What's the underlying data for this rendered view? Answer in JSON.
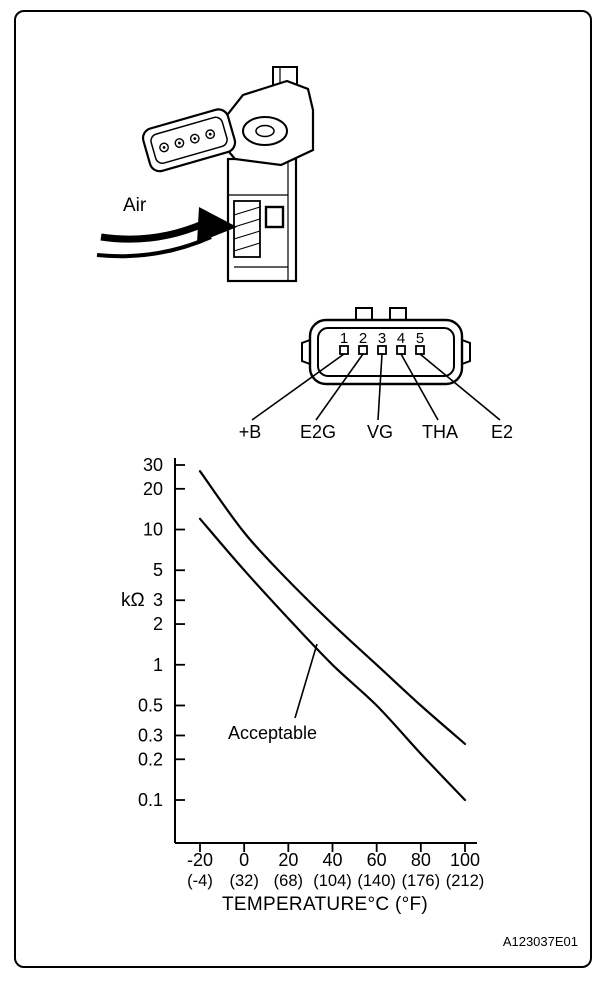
{
  "sensor": {
    "air_label": "Air"
  },
  "connector": {
    "pins": [
      {
        "number": "1",
        "label": "+B"
      },
      {
        "number": "2",
        "label": "E2G"
      },
      {
        "number": "3",
        "label": "VG"
      },
      {
        "number": "4",
        "label": "THA"
      },
      {
        "number": "5",
        "label": "E2"
      }
    ]
  },
  "chart_data": {
    "type": "line",
    "title": "",
    "xlabel": "TEMPERATURE°C (°F)",
    "ylabel": "kΩ",
    "y_scale": "log",
    "xlim": [
      -20,
      100
    ],
    "ylim": [
      0.1,
      30
    ],
    "grid": false,
    "legend": "none",
    "x_ticks_c": [
      "-20",
      "0",
      "20",
      "40",
      "60",
      "80",
      "100"
    ],
    "x_ticks_f": [
      "(-4)",
      "(32)",
      "(68)",
      "(104)",
      "(140)",
      "(176)",
      "(212)"
    ],
    "y_ticks": [
      "30",
      "20",
      "10",
      "5",
      "3",
      "2",
      "1",
      "0.5",
      "0.3",
      "0.2",
      "0.1"
    ],
    "annotation": "Acceptable",
    "series": [
      {
        "name": "upper-limit",
        "x": [
          -20,
          0,
          20,
          40,
          60,
          80,
          100
        ],
        "values": [
          27,
          9.5,
          4.2,
          2.0,
          1.0,
          0.5,
          0.26
        ]
      },
      {
        "name": "lower-limit",
        "x": [
          -20,
          0,
          20,
          40,
          60,
          80,
          100
        ],
        "values": [
          12,
          5.0,
          2.2,
          1.0,
          0.5,
          0.22,
          0.1
        ]
      }
    ]
  },
  "footer": {
    "ref_code": "A123037E01"
  }
}
